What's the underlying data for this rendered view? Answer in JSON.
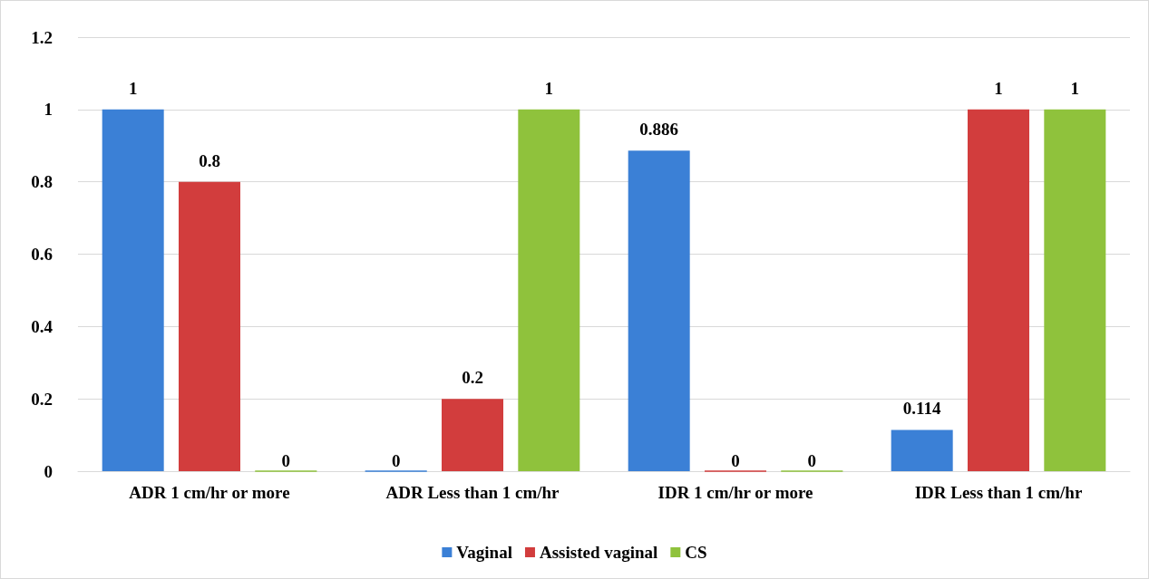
{
  "chart_data": {
    "type": "bar",
    "categories": [
      "ADR 1 cm/hr or more",
      "ADR Less than 1 cm/hr",
      "IDR 1 cm/hr or more",
      "IDR Less than 1 cm/hr"
    ],
    "series": [
      {
        "name": "Vaginal",
        "color": "#3b80d6",
        "values": [
          1,
          0,
          0.886,
          0.114
        ]
      },
      {
        "name": "Assisted vaginal",
        "color": "#d23d3d",
        "values": [
          0.8,
          0.2,
          0,
          1
        ]
      },
      {
        "name": "CS",
        "color": "#8fc23c",
        "values": [
          0,
          1,
          0,
          1
        ]
      }
    ],
    "ylim": [
      0,
      1.2
    ],
    "yticks": [
      0,
      0.2,
      0.4,
      0.6,
      0.8,
      1,
      1.2
    ],
    "grid": "y",
    "legend": "bottom",
    "data_labels": true
  }
}
